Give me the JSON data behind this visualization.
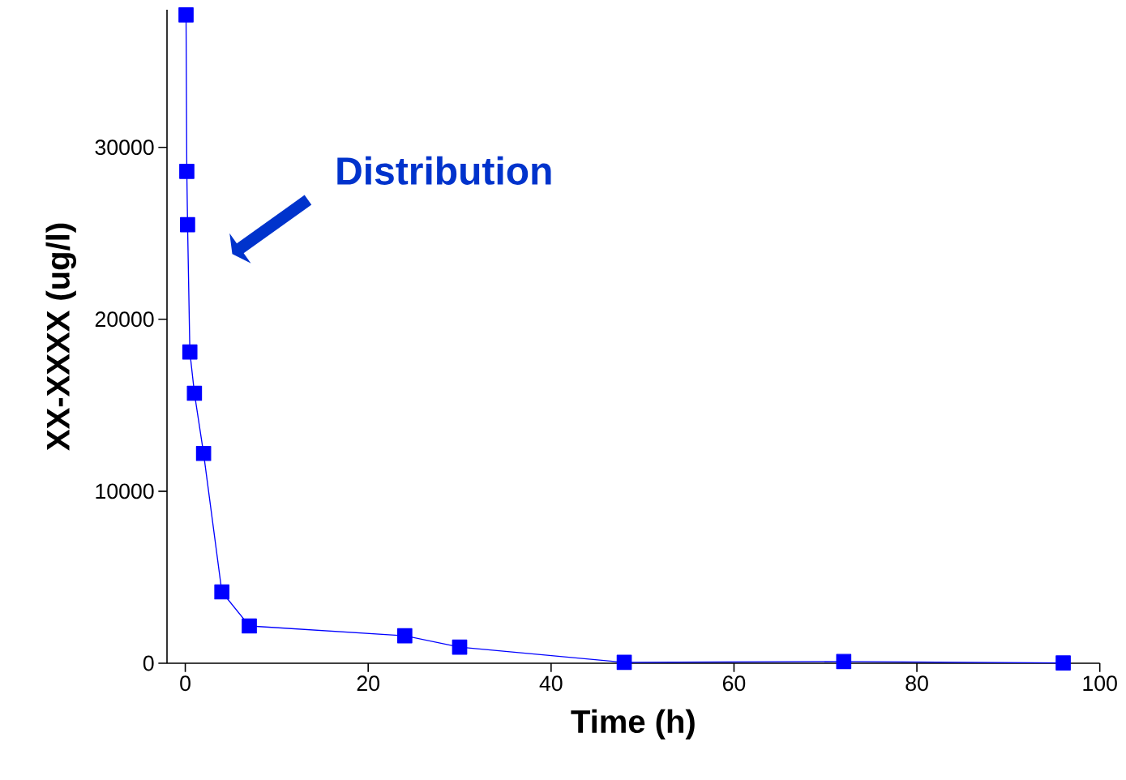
{
  "chart_data": {
    "type": "line",
    "xlabel": "Time (h)",
    "ylabel": "XX-XXXX (ug/l)",
    "x": [
      0.083,
      0.167,
      0.25,
      0.5,
      1,
      2,
      4,
      7,
      24,
      30,
      48,
      72,
      96
    ],
    "series": [
      {
        "color": "#0000ff",
        "values": [
          37700,
          28600,
          25500,
          18100,
          15700,
          12200,
          4150,
          2170,
          1600,
          940,
          50,
          100,
          20
        ]
      }
    ],
    "xlim": [
      -2,
      100
    ],
    "ylim": [
      0,
      38000
    ],
    "xticks": [
      0,
      20,
      40,
      60,
      80,
      100
    ],
    "yticks": [
      0,
      10000,
      20000,
      30000
    ],
    "marker": "square",
    "line_style": "solid",
    "grid": false,
    "annotations": [
      "Distribution"
    ]
  }
}
